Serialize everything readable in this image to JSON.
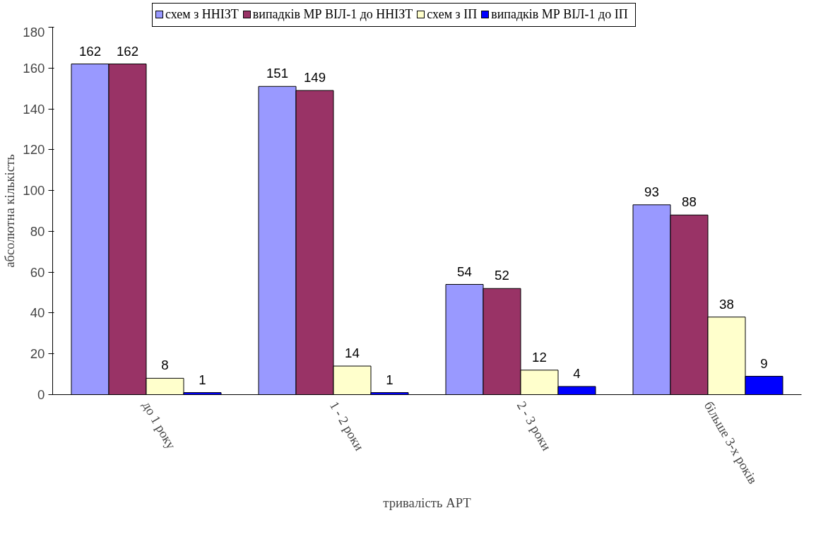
{
  "chart_data": {
    "type": "bar",
    "xlabel": "тривалість АРТ",
    "ylabel": "абсолютна кількість",
    "categories": [
      "до 1 року",
      "1 - 2 роки",
      "2 - 3 роки",
      "більше 3-х років"
    ],
    "series": [
      {
        "name": "схем з ННІЗТ",
        "color": "#9999ff",
        "values": [
          162,
          151,
          54,
          93
        ]
      },
      {
        "name": "випадків МР ВІЛ-1 до ННІЗТ",
        "color": "#993366",
        "values": [
          162,
          149,
          52,
          88
        ]
      },
      {
        "name": "схем з ІП",
        "color": "#ffffcc",
        "values": [
          8,
          14,
          12,
          38
        ]
      },
      {
        "name": "випадків МР ВІЛ-1 до ІП",
        "color": "#0000ff",
        "values": [
          1,
          1,
          4,
          9
        ]
      }
    ],
    "ylim": [
      0,
      180
    ],
    "yticks": [
      0,
      20,
      40,
      60,
      80,
      100,
      120,
      140,
      160,
      180
    ],
    "grid": false,
    "legend": "top",
    "data_labels": true
  }
}
